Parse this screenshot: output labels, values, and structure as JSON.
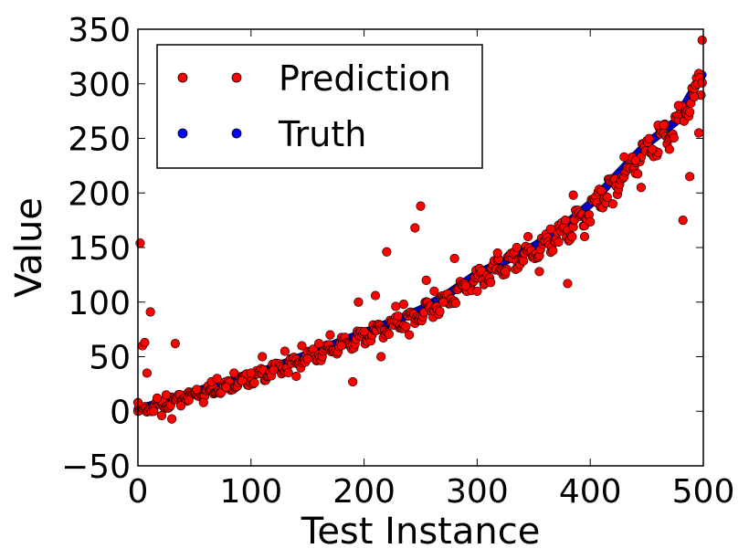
{
  "chart_data": {
    "type": "scatter",
    "title": "",
    "xlabel": "Test Instance",
    "ylabel": "Value",
    "xlim": [
      0,
      500
    ],
    "ylim": [
      -50,
      350
    ],
    "xticks": [
      0,
      100,
      200,
      300,
      400,
      500
    ],
    "yticks": [
      -50,
      0,
      50,
      100,
      150,
      200,
      250,
      300,
      350
    ],
    "grid": false,
    "legend_position": "top-left",
    "legend": [
      "Prediction",
      "Truth"
    ],
    "colors": {
      "prediction": "#ff0000",
      "truth": "#0000ff"
    },
    "series": [
      {
        "name": "Truth",
        "x": [
          0,
          25,
          50,
          75,
          100,
          125,
          150,
          175,
          200,
          225,
          250,
          275,
          300,
          325,
          350,
          375,
          400,
          425,
          450,
          475,
          500
        ],
        "values": [
          2,
          9,
          18,
          25,
          33,
          42,
          52,
          62,
          72,
          82,
          93,
          108,
          126,
          138,
          151,
          168,
          190,
          218,
          245,
          265,
          310
        ]
      },
      {
        "name": "Prediction",
        "x": [
          0,
          2,
          4,
          6,
          8,
          11,
          14,
          17,
          21,
          25,
          30,
          33,
          38,
          45,
          52,
          58,
          65,
          70,
          78,
          85,
          92,
          100,
          110,
          120,
          130,
          140,
          145,
          150,
          160,
          170,
          180,
          190,
          195,
          200,
          210,
          215,
          220,
          228,
          235,
          240,
          245,
          250,
          255,
          262,
          270,
          280,
          290,
          300,
          312,
          318,
          325,
          335,
          345,
          355,
          365,
          372,
          380,
          385,
          395,
          410,
          420,
          430,
          440,
          445,
          455,
          460,
          465,
          470,
          478,
          482,
          488,
          492,
          496,
          499
        ],
        "values": [
          8,
          154,
          60,
          63,
          35,
          91,
          0,
          12,
          -4,
          15,
          -7,
          62,
          5,
          10,
          20,
          8,
          27,
          30,
          22,
          35,
          28,
          35,
          50,
          38,
          55,
          32,
          60,
          48,
          62,
          70,
          60,
          27,
          100,
          73,
          106,
          50,
          146,
          96,
          98,
          70,
          168,
          188,
          120,
          110,
          100,
          140,
          115,
          110,
          118,
          145,
          128,
          150,
          160,
          128,
          167,
          155,
          117,
          198,
          160,
          202,
          190,
          233,
          230,
          205,
          240,
          262,
          262,
          240,
          280,
          175,
          215,
          288,
          255,
          340
        ]
      }
    ]
  }
}
